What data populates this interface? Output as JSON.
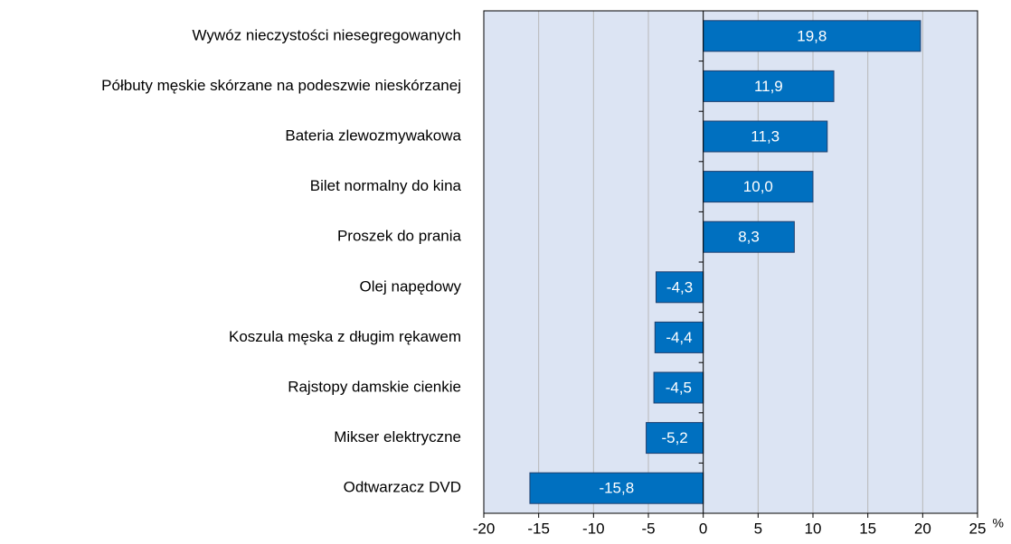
{
  "chart_data": {
    "type": "barh",
    "categories": [
      "Wywóz nieczystości niesegregowanych",
      "Półbuty męskie skórzane na podeszwie nieskórzanej",
      "Bateria zlewozmywakowa",
      "Bilet normalny do kina",
      "Proszek do prania",
      "Olej napędowy",
      "Koszula męska z długim rękawem",
      "Rajstopy damskie cienkie",
      "Mikser elektryczne",
      "Odtwarzacz DVD"
    ],
    "values": [
      19.8,
      11.9,
      11.3,
      10.0,
      8.3,
      -4.3,
      -4.4,
      -4.5,
      -5.2,
      -15.8
    ],
    "value_labels": [
      "19,8",
      "11,9",
      "11,3",
      "10,0",
      "8,3",
      "-4,3",
      "-4,4",
      "-4,5",
      "-5,2",
      "-15,8"
    ],
    "color": "#0070c0",
    "xlim": [
      -20,
      25
    ],
    "xticks": [
      -20,
      -15,
      -10,
      -5,
      0,
      5,
      10,
      15,
      20,
      25
    ],
    "x_unit": "%",
    "grid": true
  }
}
